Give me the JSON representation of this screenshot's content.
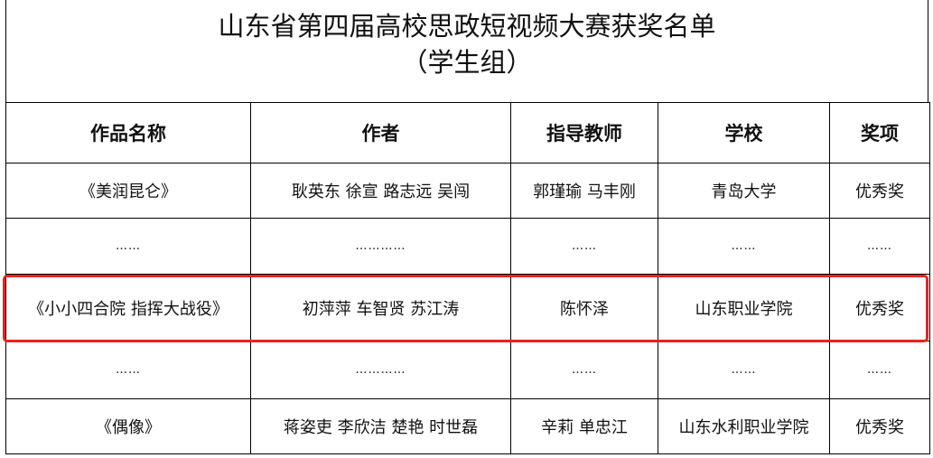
{
  "title": {
    "line1": "山东省第四届高校思政短视频大赛获奖名单",
    "line2": "（学生组）"
  },
  "headers": [
    "作品名称",
    "作者",
    "指导教师",
    "学校",
    "奖项"
  ],
  "rows": [
    [
      "《美润昆仑》",
      "耿英东  徐宣  路志远  吴闯",
      "郭瑾瑜  马丰刚",
      "青岛大学",
      "优秀奖"
    ],
    [
      "……",
      "…………",
      "……",
      "……",
      "……"
    ],
    [
      "《小小四合院  指挥大战役》",
      "初萍萍  车智贤  苏江涛",
      "陈怀泽",
      "山东职业学院",
      "优秀奖"
    ],
    [
      "……",
      "…………",
      "……",
      "……",
      "……"
    ],
    [
      "《偶像》",
      "蒋姿吏  李欣洁  楚艳  时世磊",
      "辛莉  单忠江",
      "山东水利职业学院",
      "优秀奖"
    ]
  ],
  "highlight_color": "#e8231d"
}
